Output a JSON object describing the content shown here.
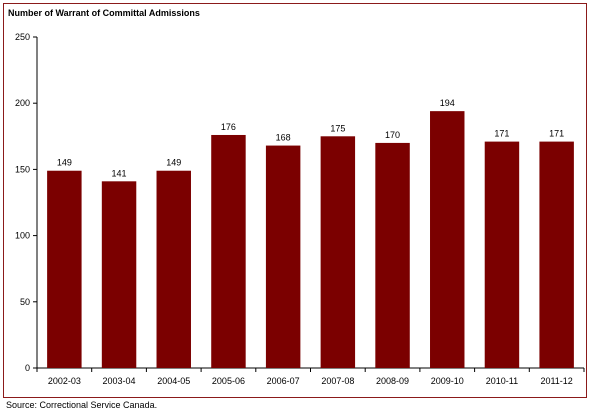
{
  "chart_data": {
    "type": "bar",
    "title": "Number of Warrant of Committal Admissions",
    "xlabel": "",
    "ylabel": "",
    "categories": [
      "2002-03",
      "2003-04",
      "2004-05",
      "2005-06",
      "2006-07",
      "2007-08",
      "2008-09",
      "2009-10",
      "2010-11",
      "2011-12"
    ],
    "values": [
      149,
      141,
      149,
      176,
      168,
      175,
      170,
      194,
      171,
      171
    ],
    "ylim": [
      0,
      250
    ],
    "yticks": [
      0,
      50,
      100,
      150,
      200,
      250
    ],
    "grid": false,
    "legend": "none",
    "bar_color": "#7b0000",
    "source": "Source:  Correctional Service Canada."
  }
}
